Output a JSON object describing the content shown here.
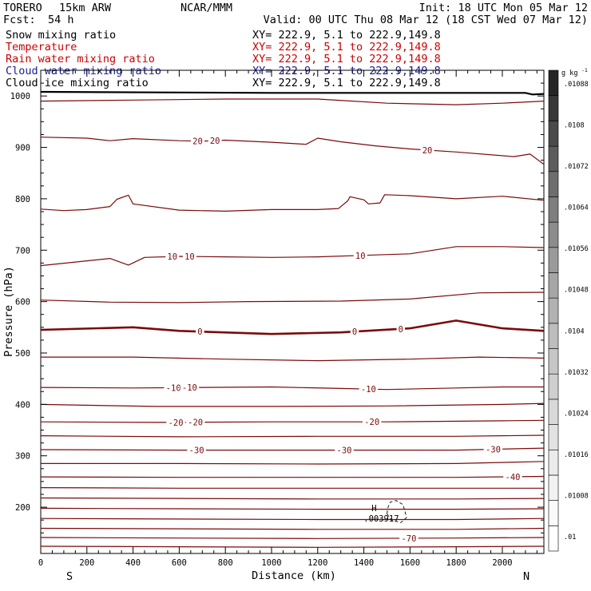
{
  "header": {
    "model": "TORERO",
    "resolution": "15km ARW",
    "source": "NCAR/MMM",
    "init": "Init: 18 UTC Mon 05 Mar 12",
    "fcst_label": "Fcst:",
    "fcst_value": "54 h",
    "valid": "Valid: 00 UTC Thu 08 Mar 12 (18 CST Wed 07 Mar 12)"
  },
  "fields": [
    {
      "name": "Snow mixing ratio",
      "xy": "XY= 222.9,  5.1 to 222.9,149.8",
      "color": "#000000"
    },
    {
      "name": "Temperature",
      "xy": "XY= 222.9,  5.1 to 222.9,149.8",
      "color": "#cc0000"
    },
    {
      "name": "Rain water mixing ratio",
      "xy": "XY= 222.9,  5.1 to 222.9,149.8",
      "color": "#cc0000"
    },
    {
      "name": "Cloud water mixing ratio",
      "xy": "XY= 222.9,  5.1 to 222.9,149.8",
      "color": "#1a1a99"
    },
    {
      "name": "Cloud ice mixing ratio",
      "xy": "XY= 222.9,  5.1 to 222.9,149.8",
      "color": "#000000"
    }
  ],
  "chart_data": {
    "type": "line",
    "xlabel": "Distance (km)",
    "ylabel": "Pressure (hPa)",
    "xlim": [
      0,
      2180
    ],
    "ylim": [
      1050,
      110
    ],
    "xticks": [
      0,
      200,
      400,
      600,
      800,
      1000,
      1200,
      1400,
      1600,
      1800,
      2000
    ],
    "yticks": [
      200,
      300,
      400,
      500,
      600,
      700,
      800,
      900,
      1000
    ],
    "endpoint_left": "S",
    "endpoint_right": "N",
    "isotherm_interval_C": 5,
    "isotherm_color": "#7a0a0a",
    "isotherms": [
      {
        "level": 25,
        "p": [
          [
            0,
            990
          ],
          [
            400,
            992
          ],
          [
            800,
            994
          ],
          [
            1200,
            994
          ],
          [
            1500,
            986
          ],
          [
            1800,
            983
          ],
          [
            2000,
            986
          ],
          [
            2180,
            990
          ]
        ],
        "labels": []
      },
      {
        "level": 20,
        "p": [
          [
            0,
            920
          ],
          [
            200,
            918
          ],
          [
            300,
            913
          ],
          [
            400,
            917
          ],
          [
            600,
            913
          ],
          [
            700,
            912
          ],
          [
            800,
            914
          ],
          [
            1000,
            910
          ],
          [
            1150,
            906
          ],
          [
            1200,
            918
          ],
          [
            1300,
            911
          ],
          [
            1450,
            903
          ],
          [
            1600,
            897
          ],
          [
            1800,
            891
          ],
          [
            2050,
            882
          ],
          [
            2120,
            887
          ],
          [
            2180,
            867
          ]
        ],
        "labels": [
          [
            680,
            "20"
          ],
          [
            755,
            "20"
          ],
          [
            1675,
            "20"
          ]
        ]
      },
      {
        "level": 15,
        "p": [
          [
            0,
            780
          ],
          [
            100,
            777
          ],
          [
            200,
            779
          ],
          [
            300,
            785
          ],
          [
            330,
            799
          ],
          [
            380,
            807
          ],
          [
            400,
            790
          ],
          [
            600,
            778
          ],
          [
            800,
            776
          ],
          [
            1000,
            779
          ],
          [
            1200,
            779
          ],
          [
            1290,
            781
          ],
          [
            1330,
            796
          ],
          [
            1340,
            804
          ],
          [
            1400,
            798
          ],
          [
            1420,
            790
          ],
          [
            1470,
            792
          ],
          [
            1490,
            808
          ],
          [
            1600,
            806
          ],
          [
            1800,
            800
          ],
          [
            2000,
            805
          ],
          [
            2180,
            797
          ]
        ],
        "labels": []
      },
      {
        "level": 10,
        "p": [
          [
            0,
            670
          ],
          [
            300,
            684
          ],
          [
            380,
            671
          ],
          [
            450,
            686
          ],
          [
            600,
            688
          ],
          [
            800,
            687
          ],
          [
            1000,
            686
          ],
          [
            1200,
            687
          ],
          [
            1400,
            690
          ],
          [
            1600,
            693
          ],
          [
            1800,
            707
          ],
          [
            2000,
            707
          ],
          [
            2180,
            705
          ]
        ],
        "labels": [
          [
            570,
            "10"
          ],
          [
            645,
            "10"
          ],
          [
            1385,
            "10"
          ]
        ]
      },
      {
        "level": 5,
        "p": [
          [
            0,
            603
          ],
          [
            300,
            599
          ],
          [
            600,
            598
          ],
          [
            900,
            600
          ],
          [
            1300,
            601
          ],
          [
            1600,
            605
          ],
          [
            1900,
            617
          ],
          [
            2180,
            618
          ]
        ],
        "labels": []
      },
      {
        "level": 0,
        "heavy": true,
        "p": [
          [
            0,
            545
          ],
          [
            400,
            550
          ],
          [
            600,
            543
          ],
          [
            1000,
            537
          ],
          [
            1300,
            540
          ],
          [
            1600,
            548
          ],
          [
            1800,
            563
          ],
          [
            2000,
            548
          ],
          [
            2180,
            543
          ]
        ],
        "labels": [
          [
            690,
            "0"
          ],
          [
            1360,
            "0"
          ],
          [
            1560,
            "0"
          ]
        ]
      },
      {
        "level": -5,
        "p": [
          [
            0,
            492
          ],
          [
            400,
            492
          ],
          [
            800,
            488
          ],
          [
            1200,
            485
          ],
          [
            1600,
            488
          ],
          [
            1900,
            492
          ],
          [
            2180,
            490
          ]
        ],
        "labels": []
      },
      {
        "level": -10,
        "p": [
          [
            0,
            433
          ],
          [
            400,
            432
          ],
          [
            700,
            433
          ],
          [
            1000,
            434
          ],
          [
            1300,
            431
          ],
          [
            1500,
            429
          ],
          [
            1800,
            432
          ],
          [
            2000,
            434
          ],
          [
            2180,
            434
          ]
        ],
        "labels": [
          [
            575,
            "-10"
          ],
          [
            645,
            "-10"
          ],
          [
            1420,
            "-10"
          ]
        ]
      },
      {
        "level": -15,
        "p": [
          [
            0,
            400
          ],
          [
            500,
            396
          ],
          [
            1000,
            396
          ],
          [
            1500,
            397
          ],
          [
            2000,
            400
          ],
          [
            2180,
            402
          ]
        ],
        "labels": []
      },
      {
        "level": -20,
        "p": [
          [
            0,
            366
          ],
          [
            500,
            365
          ],
          [
            1000,
            366
          ],
          [
            1500,
            366
          ],
          [
            2000,
            368
          ],
          [
            2180,
            369
          ]
        ],
        "labels": [
          [
            585,
            "-20"
          ],
          [
            670,
            "-20"
          ],
          [
            1435,
            "-20"
          ]
        ]
      },
      {
        "level": -25,
        "p": [
          [
            0,
            339
          ],
          [
            600,
            337
          ],
          [
            1200,
            338
          ],
          [
            1800,
            338
          ],
          [
            2180,
            340
          ]
        ],
        "labels": []
      },
      {
        "level": -30,
        "p": [
          [
            0,
            312
          ],
          [
            600,
            311
          ],
          [
            1200,
            311
          ],
          [
            1800,
            311
          ],
          [
            2180,
            315
          ]
        ],
        "labels": [
          [
            675,
            "-30"
          ],
          [
            1315,
            "-30"
          ],
          [
            1960,
            "-30"
          ]
        ]
      },
      {
        "level": -35,
        "p": [
          [
            0,
            285
          ],
          [
            600,
            285
          ],
          [
            1200,
            284
          ],
          [
            1800,
            285
          ],
          [
            2180,
            289
          ]
        ],
        "labels": []
      },
      {
        "level": -40,
        "p": [
          [
            0,
            259
          ],
          [
            600,
            258
          ],
          [
            1200,
            258
          ],
          [
            1800,
            258
          ],
          [
            2180,
            260
          ]
        ],
        "labels": [
          [
            2045,
            "-40"
          ]
        ]
      },
      {
        "level": -45,
        "p": [
          [
            0,
            238
          ],
          [
            600,
            237
          ],
          [
            1200,
            237
          ],
          [
            1800,
            237
          ],
          [
            2180,
            237
          ]
        ],
        "labels": []
      },
      {
        "level": -50,
        "p": [
          [
            0,
            218
          ],
          [
            600,
            217
          ],
          [
            1200,
            216
          ],
          [
            1800,
            216
          ],
          [
            2180,
            217
          ]
        ],
        "labels": []
      },
      {
        "level": -55,
        "p": [
          [
            0,
            198
          ],
          [
            600,
            197
          ],
          [
            1200,
            196
          ],
          [
            1800,
            196
          ],
          [
            2180,
            197
          ]
        ],
        "labels": []
      },
      {
        "level": -60,
        "p": [
          [
            0,
            178
          ],
          [
            600,
            177
          ],
          [
            1200,
            176
          ],
          [
            1800,
            176
          ],
          [
            2180,
            178
          ]
        ],
        "labels": []
      },
      {
        "level": -65,
        "p": [
          [
            0,
            159
          ],
          [
            600,
            158
          ],
          [
            1200,
            157
          ],
          [
            1800,
            157
          ],
          [
            2180,
            159
          ]
        ],
        "labels": []
      },
      {
        "level": -70,
        "p": [
          [
            0,
            141
          ],
          [
            600,
            140
          ],
          [
            1200,
            139
          ],
          [
            1800,
            140
          ],
          [
            2180,
            141
          ]
        ],
        "labels": [
          [
            1595,
            "-70"
          ]
        ]
      },
      {
        "level": -75,
        "p": [
          [
            0,
            124
          ],
          [
            600,
            123
          ],
          [
            1200,
            122
          ],
          [
            1800,
            123
          ],
          [
            2180,
            124
          ]
        ],
        "labels": []
      }
    ],
    "high_marker": {
      "x": 1520,
      "p": 188,
      "text": "H",
      "value": ".003917"
    },
    "dashed_contour": [
      [
        1500,
        187
      ],
      [
        1520,
        175
      ],
      [
        1560,
        170
      ],
      [
        1585,
        180
      ],
      [
        1570,
        205
      ],
      [
        1540,
        213
      ],
      [
        1515,
        210
      ],
      [
        1505,
        200
      ]
    ],
    "surface_line": [
      [
        0,
        1008
      ],
      [
        500,
        1007
      ],
      [
        1000,
        1006
      ],
      [
        1500,
        1006
      ],
      [
        2100,
        1006
      ],
      [
        2130,
        1003
      ],
      [
        2180,
        1004
      ]
    ],
    "colorbar": {
      "unit": "g kg",
      "unit_exp": "-1",
      "labels": [
        ".01",
        ".01008",
        ".01016",
        ".01024",
        ".01032",
        ".0104",
        ".01048",
        ".01056",
        ".01064",
        ".01072",
        ".0108",
        ".01088"
      ],
      "shades": [
        "#ffffff",
        "#fafafa",
        "#f2f2f2",
        "#ebebeb",
        "#e2e2e2",
        "#d9d9d9",
        "#cfcfcf",
        "#c6c6c6",
        "#bdbdbd",
        "#b2b2b2",
        "#a6a6a6",
        "#9a9a9a",
        "#8c8c8c",
        "#7e7e7e",
        "#6e6e6e",
        "#5c5c5c",
        "#4a4a4a",
        "#383838",
        "#262626"
      ]
    }
  }
}
